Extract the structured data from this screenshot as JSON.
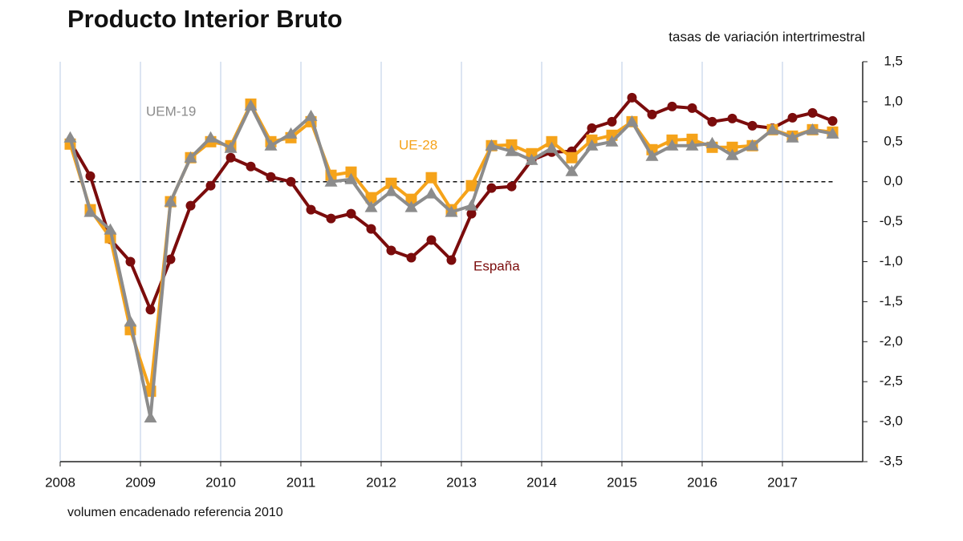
{
  "chart_data": {
    "type": "line",
    "title": "Producto Interior Bruto",
    "subtitle": "tasas de variación intertrimestral",
    "note": "volumen encadenado referencia 2010",
    "x": [
      2008.125,
      2008.375,
      2008.625,
      2008.875,
      2009.125,
      2009.375,
      2009.625,
      2009.875,
      2010.125,
      2010.375,
      2010.625,
      2010.875,
      2011.125,
      2011.375,
      2011.625,
      2011.875,
      2012.125,
      2012.375,
      2012.625,
      2012.875,
      2013.125,
      2013.375,
      2013.625,
      2013.875,
      2014.125,
      2014.375,
      2014.625,
      2014.875,
      2015.125,
      2015.375,
      2015.625,
      2015.875,
      2016.125,
      2016.375,
      2016.625,
      2016.875,
      2017.125,
      2017.375,
      2017.625
    ],
    "series": [
      {
        "name": "España",
        "color": "#7b0c0c",
        "marker": "circle",
        "values": [
          0.5,
          0.07,
          -0.72,
          -1.0,
          -1.6,
          -0.97,
          -0.3,
          -0.05,
          0.3,
          0.19,
          0.06,
          0.0,
          -0.35,
          -0.46,
          -0.4,
          -0.59,
          -0.86,
          -0.95,
          -0.73,
          -0.98,
          -0.4,
          -0.08,
          -0.06,
          0.27,
          0.37,
          0.38,
          0.67,
          0.75,
          1.05,
          0.84,
          0.94,
          0.92,
          0.75,
          0.79,
          0.7,
          0.67,
          0.8,
          0.86,
          0.76
        ]
      },
      {
        "name": "UE-28",
        "color": "#f5a31a",
        "marker": "square",
        "values": [
          0.47,
          -0.35,
          -0.7,
          -1.85,
          -2.62,
          -0.25,
          0.3,
          0.5,
          0.45,
          0.97,
          0.5,
          0.55,
          0.75,
          0.08,
          0.12,
          -0.2,
          -0.02,
          -0.22,
          0.05,
          -0.35,
          -0.05,
          0.45,
          0.46,
          0.35,
          0.5,
          0.3,
          0.52,
          0.58,
          0.75,
          0.4,
          0.52,
          0.53,
          0.43,
          0.43,
          0.45,
          0.65,
          0.57,
          0.65,
          0.62
        ]
      },
      {
        "name": "UEM-19",
        "color": "#8c8c8c",
        "marker": "triangle",
        "values": [
          0.55,
          -0.38,
          -0.6,
          -1.75,
          -2.95,
          -0.25,
          0.3,
          0.55,
          0.42,
          0.95,
          0.45,
          0.6,
          0.82,
          0.0,
          0.03,
          -0.32,
          -0.12,
          -0.32,
          -0.15,
          -0.38,
          -0.3,
          0.45,
          0.38,
          0.27,
          0.42,
          0.13,
          0.45,
          0.5,
          0.75,
          0.32,
          0.45,
          0.45,
          0.48,
          0.33,
          0.45,
          0.65,
          0.55,
          0.65,
          0.6
        ]
      }
    ],
    "xlim": [
      2008,
      2018
    ],
    "xticks": [
      2008,
      2009,
      2010,
      2011,
      2012,
      2013,
      2014,
      2015,
      2016,
      2017
    ],
    "ylim": [
      -3.5,
      1.5
    ],
    "yticks": [
      {
        "value": -3.5,
        "label": "-3,5"
      },
      {
        "value": -3.0,
        "label": "-3,0"
      },
      {
        "value": -2.5,
        "label": "-2,5"
      },
      {
        "value": -2.0,
        "label": "-2,0"
      },
      {
        "value": -1.5,
        "label": "-1,5"
      },
      {
        "value": -1.0,
        "label": "-1,0"
      },
      {
        "value": -0.5,
        "label": "-0,5"
      },
      {
        "value": 0.0,
        "label": "0,0"
      },
      {
        "value": 0.5,
        "label": "0,5"
      },
      {
        "value": 1.0,
        "label": "1,0"
      },
      {
        "value": 1.5,
        "label": "1,5"
      }
    ],
    "yaxis_side": "right",
    "grid": "x",
    "zero_line": true
  }
}
